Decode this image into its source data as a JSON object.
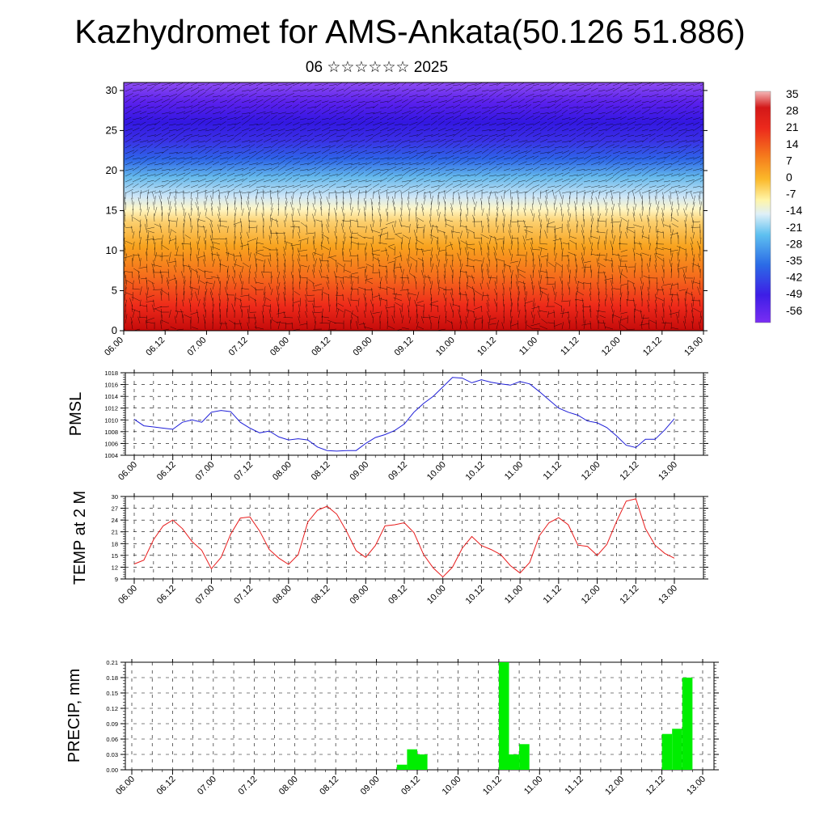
{
  "title": "Kazhydromet for AMS-Ankata(50.126 51.886)",
  "subtitle": "06 ☆☆☆☆☆☆ 2025",
  "chart_data": [
    {
      "type": "heatmap",
      "name": "cross-section",
      "x_ticks": [
        "06.00",
        "06.12",
        "07.00",
        "07.12",
        "08.00",
        "08.12",
        "09.00",
        "09.12",
        "10.00",
        "10.12",
        "11.00",
        "11.12",
        "12.00",
        "12.12",
        "13.00"
      ],
      "y_ticks": [
        0,
        5,
        10,
        15,
        20,
        25,
        30
      ],
      "ylim": [
        0,
        31
      ],
      "colorbar_labels": [
        "35",
        "28",
        "21",
        "14",
        "7",
        "0",
        "-7",
        "-14",
        "-21",
        "-28",
        "-35",
        "-42",
        "-49",
        "-56"
      ],
      "value_range": [
        -60,
        38
      ],
      "overlay": "wind barbs",
      "approx_profile": {
        "heights": [
          0,
          5,
          10,
          15,
          18,
          20,
          23,
          26,
          29,
          31
        ],
        "values": [
          30,
          18,
          7,
          -6,
          -18,
          -26,
          -42,
          -56,
          -52,
          -40
        ]
      }
    },
    {
      "type": "line",
      "ylabel": "PMSL",
      "color": "#1f1fd8",
      "x_ticks": [
        "06.00",
        "06.12",
        "07.00",
        "07.12",
        "08.00",
        "08.12",
        "09.00",
        "09.12",
        "10.00",
        "10.12",
        "11.00",
        "11.12",
        "12.00",
        "12.12",
        "13.00"
      ],
      "y_ticks": [
        "1004",
        "1006",
        "1008",
        "1010",
        "1012",
        "1014",
        "1016",
        "1018"
      ],
      "ylim": [
        1004,
        1018
      ],
      "x": [
        0,
        3,
        6,
        9,
        12,
        15,
        18,
        21,
        24,
        27,
        30,
        33,
        36,
        39,
        42,
        45,
        48,
        51,
        54,
        57,
        60,
        63,
        66,
        69,
        72,
        75,
        78,
        81,
        84,
        87,
        90,
        93,
        96,
        99,
        102,
        105,
        108,
        111,
        114,
        117,
        120,
        123,
        126,
        129,
        132,
        135,
        138,
        141,
        144,
        147,
        150,
        153,
        156,
        159,
        162,
        165,
        168
      ],
      "values": [
        1010.1,
        1009.0,
        1008.8,
        1008.6,
        1008.4,
        1009.6,
        1010.0,
        1009.6,
        1011.3,
        1011.6,
        1011.4,
        1009.6,
        1008.6,
        1007.8,
        1008.1,
        1007.1,
        1006.6,
        1006.8,
        1006.6,
        1005.4,
        1004.8,
        1004.7,
        1004.8,
        1004.8,
        1006.0,
        1007.0,
        1007.5,
        1008.2,
        1009.3,
        1011.3,
        1012.8,
        1014.0,
        1015.6,
        1017.2,
        1017.1,
        1016.3,
        1016.8,
        1016.4,
        1016.1,
        1015.9,
        1016.5,
        1016.1,
        1014.8,
        1013.4,
        1012.0,
        1011.3,
        1010.8,
        1009.8,
        1009.5,
        1008.7,
        1007.3,
        1005.7,
        1005.3,
        1006.7,
        1006.7,
        1008.3,
        1010.2
      ]
    },
    {
      "type": "line",
      "ylabel": "TEMP at 2 M",
      "color": "#e81c1c",
      "x_ticks": [
        "06.00",
        "06.12",
        "07.00",
        "07.12",
        "08.00",
        "08.12",
        "09.00",
        "09.12",
        "10.00",
        "10.12",
        "11.00",
        "11.12",
        "12.00",
        "12.12",
        "13.00"
      ],
      "y_ticks": [
        "9",
        "12",
        "15",
        "18",
        "21",
        "24",
        "27",
        "30"
      ],
      "ylim": [
        9,
        30
      ],
      "x": [
        0,
        3,
        6,
        9,
        12,
        15,
        18,
        21,
        24,
        27,
        30,
        33,
        36,
        39,
        42,
        45,
        48,
        51,
        54,
        57,
        60,
        63,
        66,
        69,
        72,
        75,
        78,
        81,
        84,
        87,
        90,
        93,
        96,
        99,
        102,
        105,
        108,
        111,
        114,
        117,
        120,
        123,
        126,
        129,
        132,
        135,
        138,
        141,
        144,
        147,
        150,
        153,
        156,
        159,
        162,
        165,
        168
      ],
      "values": [
        12.8,
        13.8,
        19.0,
        22.5,
        24.0,
        21.8,
        18.5,
        16.3,
        11.6,
        14.5,
        20.4,
        24.5,
        24.8,
        21.2,
        16.5,
        14.3,
        12.7,
        15.2,
        23.5,
        26.5,
        27.5,
        25.5,
        21.2,
        16.2,
        14.5,
        17.5,
        22.5,
        22.8,
        23.3,
        20.8,
        15.2,
        11.8,
        9.5,
        12.0,
        16.8,
        19.8,
        17.5,
        16.5,
        15.2,
        12.4,
        10.5,
        13.2,
        20.0,
        23.3,
        24.6,
        22.8,
        17.6,
        17.3,
        15.0,
        17.8,
        23.6,
        28.8,
        29.4,
        21.8,
        17.6,
        15.5,
        14.3
      ]
    },
    {
      "type": "bar",
      "ylabel": "PRECIP, mm",
      "color": "#00ee00",
      "x_ticks": [
        "06.00",
        "06.12",
        "07.00",
        "07.12",
        "08.00",
        "08.12",
        "09.00",
        "09.12",
        "10.00",
        "10.12",
        "11.00",
        "11.12",
        "12.00",
        "12.12",
        "13.00"
      ],
      "y_ticks": [
        "0.00",
        "0.03",
        "0.06",
        "0.09",
        "0.12",
        "0.15",
        "0.18",
        "0.21"
      ],
      "ylim": [
        0,
        0.21
      ],
      "x": [
        78,
        81,
        84,
        108,
        111,
        114,
        156,
        159,
        162
      ],
      "values": [
        0.01,
        0.04,
        0.03,
        0.21,
        0.03,
        0.05,
        0.07,
        0.08,
        0.18
      ]
    }
  ]
}
